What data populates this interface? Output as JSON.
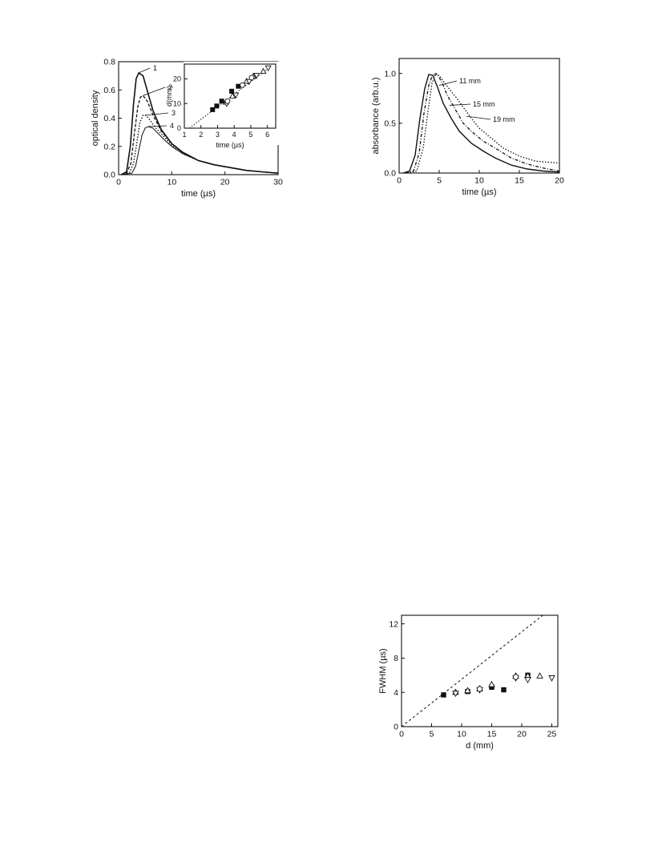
{
  "chart_data": [
    {
      "type": "line",
      "xlabel": "time  (µs)",
      "ylabel": "optical density",
      "xlim": [
        0,
        30
      ],
      "ylim": [
        0,
        0.8
      ],
      "xticks": [
        "0",
        "10",
        "20",
        "30"
      ],
      "yticks": [
        "0.0",
        "0.2",
        "0.4",
        "0.6",
        "0.8"
      ],
      "series": [
        {
          "name": "1",
          "style": "solid",
          "x": [
            0.5,
            1.5,
            2.2,
            2.8,
            3.3,
            3.8,
            4.6,
            5.5,
            6.5,
            8,
            10,
            12,
            15,
            18,
            21,
            24,
            27,
            30
          ],
          "y": [
            0,
            0.02,
            0.2,
            0.5,
            0.68,
            0.72,
            0.7,
            0.58,
            0.45,
            0.32,
            0.22,
            0.16,
            0.1,
            0.07,
            0.05,
            0.03,
            0.02,
            0.01
          ]
        },
        {
          "name": "2",
          "style": "dash",
          "x": [
            0.5,
            1.5,
            2.3,
            3,
            3.6,
            4.1,
            4.6,
            5.4,
            6.5,
            8,
            10,
            12,
            15,
            18,
            21,
            24,
            27,
            30
          ],
          "y": [
            0,
            0.01,
            0.08,
            0.3,
            0.48,
            0.55,
            0.56,
            0.52,
            0.42,
            0.31,
            0.22,
            0.16,
            0.1,
            0.07,
            0.05,
            0.03,
            0.02,
            0.01
          ]
        },
        {
          "name": "3",
          "style": "dot",
          "x": [
            0.5,
            2,
            2.8,
            3.4,
            4,
            4.6,
            5.2,
            6,
            7,
            8.5,
            10,
            12,
            15,
            18,
            21,
            24,
            27,
            30
          ],
          "y": [
            0,
            0.01,
            0.08,
            0.22,
            0.37,
            0.42,
            0.42,
            0.38,
            0.33,
            0.27,
            0.21,
            0.15,
            0.1,
            0.07,
            0.05,
            0.03,
            0.02,
            0.01
          ]
        },
        {
          "name": "4",
          "style": "solid-thin",
          "x": [
            0.5,
            2.5,
            3.2,
            3.8,
            4.4,
            5,
            5.6,
            6.4,
            7.2,
            8.5,
            10,
            12,
            15,
            18,
            21,
            24,
            27,
            30
          ],
          "y": [
            0,
            0.01,
            0.06,
            0.17,
            0.28,
            0.33,
            0.34,
            0.33,
            0.3,
            0.25,
            0.2,
            0.15,
            0.1,
            0.07,
            0.05,
            0.03,
            0.02,
            0.01
          ]
        }
      ],
      "annotations": [
        "1",
        "2",
        "3",
        "4"
      ],
      "inset": {
        "type": "scatter",
        "xlabel": "time (µs)",
        "ylabel": "d(mm)",
        "xlim": [
          1,
          6.5
        ],
        "ylim": [
          0,
          26
        ],
        "xticks": [
          "1",
          "2",
          "3",
          "4",
          "5",
          "6"
        ],
        "yticks": [
          "0",
          "10",
          "20"
        ],
        "fit_line": {
          "x": [
            1.3,
            6.2
          ],
          "y": [
            0,
            25
          ],
          "style": "dotted"
        },
        "series": [
          {
            "marker": "filled-square",
            "x": [
              2.7,
              2.95,
              3.25,
              3.85,
              4.25
            ],
            "y": [
              7.5,
              9,
              11,
              15,
              17
            ]
          },
          {
            "marker": "open-triangle-up",
            "x": [
              3.5,
              3.9,
              4.75,
              5.15,
              5.75
            ],
            "y": [
              10.5,
              13,
              19,
              21,
              23
            ]
          },
          {
            "marker": "open-triangle-down",
            "x": [
              3.55,
              4.1,
              4.9,
              5.35,
              6.05
            ],
            "y": [
              10,
              13.5,
              19,
              21.5,
              24.5
            ]
          },
          {
            "marker": "open-circle",
            "x": [
              3.6,
              4.5,
              5.05
            ],
            "y": [
              11,
              17.5,
              20.5
            ]
          }
        ]
      }
    },
    {
      "type": "line",
      "xlabel": "time (µs)",
      "ylabel": "absorbance (arb.u.)",
      "xlim": [
        0,
        20
      ],
      "ylim": [
        0,
        1.15
      ],
      "xticks": [
        "0",
        "5",
        "10",
        "15",
        "20"
      ],
      "yticks": [
        "0.0",
        "0.5",
        "1.0"
      ],
      "series": [
        {
          "name": "11 mm",
          "style": "solid",
          "x": [
            0.5,
            1.3,
            2,
            2.6,
            3.2,
            3.7,
            4.2,
            4.8,
            5.5,
            6.5,
            7.5,
            9,
            10.5,
            12,
            14,
            16,
            18,
            20
          ],
          "y": [
            0,
            0.02,
            0.18,
            0.55,
            0.85,
            0.99,
            0.98,
            0.86,
            0.7,
            0.55,
            0.42,
            0.3,
            0.22,
            0.15,
            0.08,
            0.04,
            0.02,
            0.01
          ]
        },
        {
          "name": "15 mm",
          "style": "dash-dot",
          "x": [
            0.8,
            1.8,
            2.5,
            3.1,
            3.7,
            4.2,
            4.8,
            5.4,
            6,
            7,
            8,
            9,
            10.5,
            12,
            14,
            16,
            18,
            20
          ],
          "y": [
            0,
            0.02,
            0.2,
            0.6,
            0.88,
            0.99,
            0.99,
            0.9,
            0.78,
            0.64,
            0.5,
            0.42,
            0.32,
            0.25,
            0.15,
            0.09,
            0.05,
            0.02
          ]
        },
        {
          "name": "19 mm",
          "style": "dot",
          "x": [
            1,
            2.2,
            3,
            3.6,
            4.1,
            4.6,
            5.1,
            5.7,
            6.4,
            7.2,
            8,
            9,
            10,
            11.5,
            13,
            15,
            17,
            20
          ],
          "y": [
            0,
            0.02,
            0.25,
            0.62,
            0.9,
            1.0,
            0.97,
            0.9,
            0.83,
            0.75,
            0.66,
            0.55,
            0.45,
            0.35,
            0.25,
            0.17,
            0.12,
            0.1
          ]
        }
      ],
      "annotations": [
        "11 mm",
        "15 mm",
        "19 mm"
      ]
    },
    {
      "type": "scatter",
      "xlabel": "d (mm)",
      "ylabel": "FWHM (µs)",
      "xlim": [
        0,
        26
      ],
      "ylim": [
        0,
        13
      ],
      "xticks": [
        "0",
        "5",
        "10",
        "15",
        "20",
        "25"
      ],
      "yticks": [
        "0",
        "4",
        "8",
        "12"
      ],
      "reference_line": {
        "x": [
          0,
          23.5
        ],
        "y": [
          0,
          13
        ],
        "style": "dashed"
      },
      "series": [
        {
          "marker": "filled-square",
          "x": [
            7,
            11,
            15,
            17,
            21
          ],
          "y": [
            3.7,
            4.1,
            4.6,
            4.3,
            6.0
          ]
        },
        {
          "marker": "open-triangle-up",
          "x": [
            9,
            11,
            13,
            15,
            19,
            21,
            23
          ],
          "y": [
            4.0,
            4.2,
            4.4,
            4.9,
            5.9,
            5.9,
            5.9
          ]
        },
        {
          "marker": "open-triangle-down",
          "x": [
            9,
            13,
            19,
            21,
            25
          ],
          "y": [
            3.9,
            4.3,
            5.7,
            5.5,
            5.7
          ]
        },
        {
          "marker": "open-circle",
          "x": [
            13,
            19
          ],
          "y": [
            4.4,
            5.8
          ]
        }
      ]
    }
  ]
}
